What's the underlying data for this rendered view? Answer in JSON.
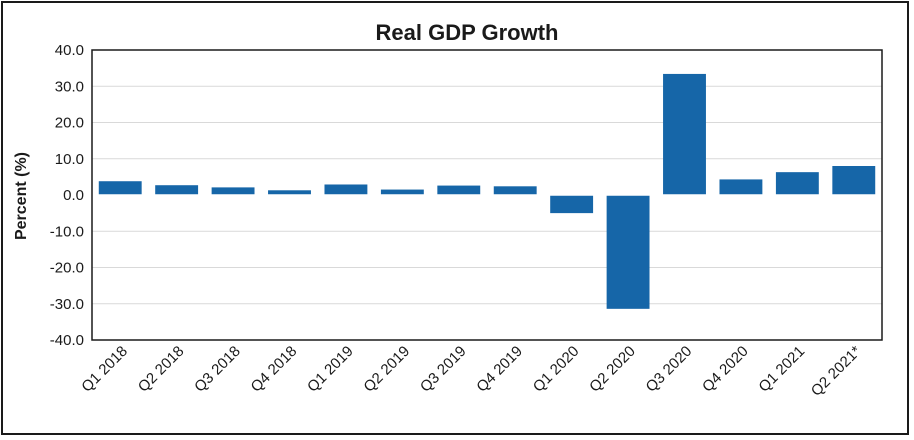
{
  "chart_data": {
    "type": "bar",
    "title": "Real GDP Growth",
    "xlabel": "",
    "ylabel": "Percent (%)",
    "ylim": [
      -40,
      40
    ],
    "y_ticks": [
      "40.0",
      "30.0",
      "20.0",
      "10.0",
      "0.0",
      "-10.0",
      "-20.0",
      "-30.0",
      "-40.0"
    ],
    "y_tick_values": [
      40,
      30,
      20,
      10,
      0,
      -10,
      -20,
      -30,
      -40
    ],
    "grid": true,
    "legend": "none",
    "categories": [
      "Q1 2018",
      "Q2 2018",
      "Q3 2018",
      "Q4 2018",
      "Q1 2019",
      "Q2 2019",
      "Q3 2019",
      "Q4 2019",
      "Q1 2020",
      "Q2 2020",
      "Q3 2020",
      "Q4 2020",
      "Q1 2021",
      "Q2 2021*"
    ],
    "series": [
      {
        "name": "Real GDP Growth",
        "values": [
          3.8,
          2.7,
          2.1,
          1.3,
          2.9,
          1.5,
          2.6,
          2.4,
          -5.0,
          -31.4,
          33.4,
          4.3,
          6.3,
          8.0
        ]
      }
    ],
    "bar_color": "#1666a8",
    "grid_color": "#d9d9d9",
    "axis_color": "#1a1a1a"
  }
}
